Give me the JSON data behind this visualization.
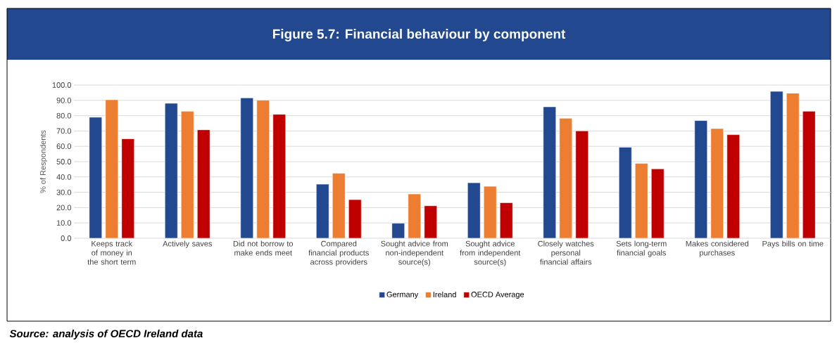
{
  "chart_data": {
    "type": "bar",
    "title": "Figure 5.7: Financial behaviour by component",
    "ylabel": "% of Respondents",
    "annotations": [
      "Source: analysis of OECD Ireland data"
    ],
    "categories": [
      "Keeps track of money in the short term",
      "Actively saves",
      "Did not borrow to make ends meet",
      "Compared financial products across providers",
      "Sought advice from non-independent source(s)",
      "Sought advice from independent source(s)",
      "Closely watches personal financial affairs",
      "Sets long-term financial goals",
      "Makes considered purchases",
      "Pays bills on time"
    ],
    "series": [
      {
        "name": "Germany",
        "color": "#22488f",
        "values": [
          79,
          88.1,
          91.6,
          35.3,
          9.8,
          36.2,
          85.8,
          59.4,
          76.8,
          95.9
        ]
      },
      {
        "name": "Ireland",
        "color": "#ed7d31",
        "values": [
          90.4,
          82.9,
          90.1,
          42.4,
          28.9,
          33.9,
          78.3,
          48.9,
          71.6,
          94.7
        ]
      },
      {
        "name": "OECD Average",
        "color": "#c00000",
        "values": [
          64.9,
          70.8,
          80.9,
          25.2,
          21.2,
          23.2,
          70.1,
          45.3,
          67.6,
          82.9
        ]
      }
    ],
    "ylim": [
      0,
      100
    ],
    "yticks": [
      {
        "value": 0,
        "label": "0.0"
      },
      {
        "value": 10,
        "label": "10.0"
      },
      {
        "value": 20,
        "label": "20.0"
      },
      {
        "value": 30,
        "label": "30.0"
      },
      {
        "value": 40,
        "label": "40.0"
      },
      {
        "value": 50,
        "label": "50.0"
      },
      {
        "value": 60,
        "label": "60.0"
      },
      {
        "value": 70,
        "label": "70.0"
      },
      {
        "value": 80,
        "label": "80.0"
      },
      {
        "value": 90,
        "label": "90.0"
      },
      {
        "value": 100,
        "label": "100.0"
      }
    ],
    "grid": "y",
    "legend": "bottom"
  }
}
